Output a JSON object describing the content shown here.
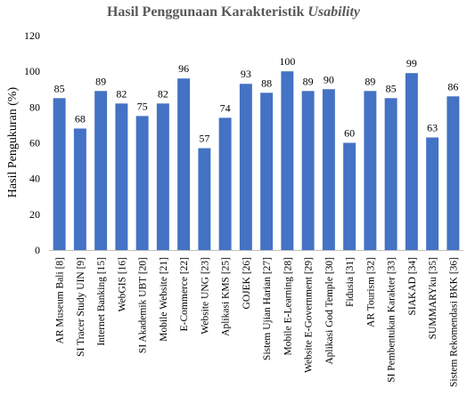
{
  "chart_data": {
    "type": "bar",
    "title": "Hasil Penggunaan Karakteristik",
    "title_italic": "Usability",
    "xlabel": "",
    "ylabel": "Hasil Pengukuran (%)",
    "ylim": [
      0,
      120
    ],
    "yticks": [
      0,
      20,
      40,
      60,
      80,
      100,
      120
    ],
    "grid": false,
    "legend": "none",
    "bar_color": "#4472C4",
    "categories": [
      "AR Museum Bali [8]",
      "SI Tracer Study UIN [9]",
      "Internet Banking [15]",
      "WebGIS [16]",
      "SI Akademik UBT [20]",
      "Mobile Website [21]",
      "E-Commerce [22]",
      "Website UNG [23]",
      "Aplikasi KMS [25]",
      "GOJEK [26]",
      "Sistem Ujian Harian [27]",
      "Mobile E-Learning [28]",
      "Website E-Government [29]",
      "Aplikasi God Temple [30]",
      "Fidusia [31]",
      "AR Tourism [32]",
      "SI Pembentukan Karakter [33]",
      "SIAKAD [34]",
      "SUMMARYku [35]",
      "Sistem Rekomendasi BKK [36]"
    ],
    "values": [
      85,
      68,
      89,
      82,
      75,
      82,
      96,
      57,
      74,
      93,
      88,
      100,
      89,
      90,
      60,
      89,
      85,
      99,
      63,
      86
    ]
  }
}
